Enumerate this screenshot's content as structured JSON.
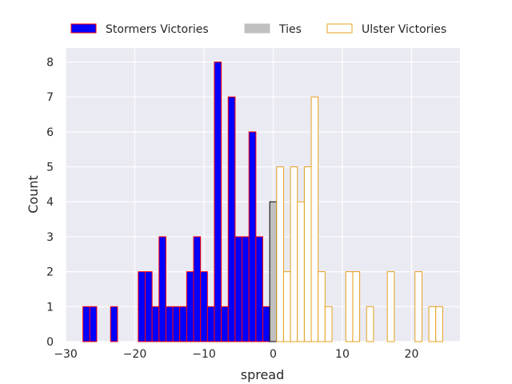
{
  "chart_data": {
    "type": "bar",
    "subtype": "histogram",
    "title": "",
    "xlabel": "spread",
    "ylabel": "Count",
    "xlim": [
      -30,
      27
    ],
    "ylim": [
      0,
      8.4
    ],
    "xticks": [
      -30,
      -20,
      -10,
      0,
      10,
      20
    ],
    "yticks": [
      0,
      1,
      2,
      3,
      4,
      5,
      6,
      7,
      8
    ],
    "grid": true,
    "legend_position": "top",
    "series": [
      {
        "name": "Stormers Victories",
        "color": "#0000ff",
        "edgecolor": "#ff0000",
        "fill": true,
        "bins": [
          {
            "x0": -27.5,
            "x1": -26.5,
            "count": 1
          },
          {
            "x0": -26.5,
            "x1": -25.5,
            "count": 1
          },
          {
            "x0": -23.5,
            "x1": -22.5,
            "count": 1
          },
          {
            "x0": -19.5,
            "x1": -18.5,
            "count": 2
          },
          {
            "x0": -18.5,
            "x1": -17.5,
            "count": 2
          },
          {
            "x0": -17.5,
            "x1": -16.5,
            "count": 1
          },
          {
            "x0": -16.5,
            "x1": -15.5,
            "count": 3
          },
          {
            "x0": -15.5,
            "x1": -14.5,
            "count": 1
          },
          {
            "x0": -14.5,
            "x1": -13.5,
            "count": 1
          },
          {
            "x0": -13.5,
            "x1": -12.5,
            "count": 1
          },
          {
            "x0": -12.5,
            "x1": -11.5,
            "count": 2
          },
          {
            "x0": -11.5,
            "x1": -10.5,
            "count": 3
          },
          {
            "x0": -10.5,
            "x1": -9.5,
            "count": 2
          },
          {
            "x0": -9.5,
            "x1": -8.5,
            "count": 1
          },
          {
            "x0": -8.5,
            "x1": -7.5,
            "count": 8
          },
          {
            "x0": -7.5,
            "x1": -6.5,
            "count": 1
          },
          {
            "x0": -6.5,
            "x1": -5.5,
            "count": 7
          },
          {
            "x0": -5.5,
            "x1": -4.5,
            "count": 3
          },
          {
            "x0": -4.5,
            "x1": -3.5,
            "count": 3
          },
          {
            "x0": -3.5,
            "x1": -2.5,
            "count": 6
          },
          {
            "x0": -2.5,
            "x1": -1.5,
            "count": 3
          },
          {
            "x0": -1.5,
            "x1": -0.5,
            "count": 1
          }
        ]
      },
      {
        "name": "Ties",
        "color": "#c0c0c0",
        "edgecolor": "#000000",
        "fill": true,
        "bins": [
          {
            "x0": -0.5,
            "x1": 0.5,
            "count": 4
          }
        ]
      },
      {
        "name": "Ulster Victories",
        "color": "#ffffff",
        "edgecolor": "#e6a020",
        "fill": false,
        "bins": [
          {
            "x0": 0.5,
            "x1": 1.5,
            "count": 5
          },
          {
            "x0": 1.5,
            "x1": 2.5,
            "count": 2
          },
          {
            "x0": 2.5,
            "x1": 3.5,
            "count": 5
          },
          {
            "x0": 3.5,
            "x1": 4.5,
            "count": 4
          },
          {
            "x0": 4.5,
            "x1": 5.5,
            "count": 5
          },
          {
            "x0": 5.5,
            "x1": 6.5,
            "count": 7
          },
          {
            "x0": 6.5,
            "x1": 7.5,
            "count": 2
          },
          {
            "x0": 7.5,
            "x1": 8.5,
            "count": 1
          },
          {
            "x0": 10.5,
            "x1": 11.5,
            "count": 2
          },
          {
            "x0": 11.5,
            "x1": 12.5,
            "count": 2
          },
          {
            "x0": 13.5,
            "x1": 14.5,
            "count": 1
          },
          {
            "x0": 16.5,
            "x1": 17.5,
            "count": 2
          },
          {
            "x0": 20.5,
            "x1": 21.5,
            "count": 2
          },
          {
            "x0": 22.5,
            "x1": 23.5,
            "count": 1
          },
          {
            "x0": 23.5,
            "x1": 24.5,
            "count": 1
          }
        ]
      }
    ],
    "colors": {
      "plot_background": "#eaeaf2",
      "grid": "#ffffff",
      "text": "#262626"
    }
  }
}
